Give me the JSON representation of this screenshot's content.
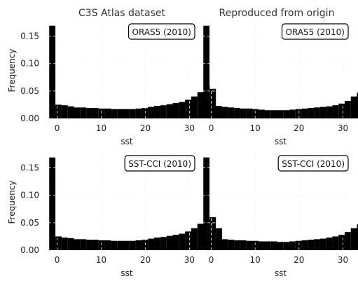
{
  "figure": {
    "column_titles": [
      "C3S Atlas dataset",
      "Reproduced from origin"
    ]
  },
  "chart_data": [
    {
      "type": "bar",
      "title": "C3S Atlas dataset",
      "legend": "ORAS5 (2010)",
      "legend_position": "top-right",
      "xlabel": "sst",
      "ylabel": "Frequency",
      "xlim": [
        -2,
        32
      ],
      "ylim": [
        0,
        0.175
      ],
      "xticks": [
        "0",
        "10",
        "20",
        "30"
      ],
      "yticks": [
        "0.00",
        "0.05",
        "0.10",
        "0.15"
      ],
      "grid": true,
      "bin_start": -1.8,
      "bin_width": 1.4,
      "values": [
        0.169,
        0.025,
        0.024,
        0.022,
        0.02,
        0.02,
        0.019,
        0.019,
        0.018,
        0.018,
        0.017,
        0.017,
        0.017,
        0.017,
        0.018,
        0.019,
        0.021,
        0.023,
        0.024,
        0.026,
        0.028,
        0.03,
        0.034,
        0.04,
        0.048,
        0.06,
        0.054,
        0.015
      ]
    },
    {
      "type": "bar",
      "title": "Reproduced from origin",
      "legend": "ORAS5 (2010)",
      "legend_position": "top-right",
      "xlabel": "sst",
      "ylabel": "",
      "xlim": [
        -2,
        32
      ],
      "ylim": [
        0,
        0.175
      ],
      "xticks": [
        "0",
        "10",
        "20",
        "30"
      ],
      "yticks": [],
      "grid": true,
      "bin_start": -1.8,
      "bin_width": 1.4,
      "values": [
        0.169,
        0.024,
        0.023,
        0.021,
        0.02,
        0.019,
        0.018,
        0.018,
        0.017,
        0.016,
        0.015,
        0.015,
        0.015,
        0.015,
        0.016,
        0.017,
        0.018,
        0.019,
        0.02,
        0.021,
        0.022,
        0.024,
        0.027,
        0.032,
        0.04,
        0.047,
        0.043,
        0.01
      ]
    },
    {
      "type": "bar",
      "title": "",
      "legend": "SST-CCI (2010)",
      "legend_position": "top-right",
      "xlabel": "sst",
      "ylabel": "Frequency",
      "xlim": [
        -2,
        32
      ],
      "ylim": [
        0,
        0.175
      ],
      "xticks": [
        "0",
        "10",
        "20",
        "30"
      ],
      "yticks": [
        "0.00",
        "0.05",
        "0.10",
        "0.15"
      ],
      "grid": true,
      "bin_start": -1.8,
      "bin_width": 1.4,
      "values": [
        0.169,
        0.025,
        0.023,
        0.022,
        0.02,
        0.02,
        0.019,
        0.019,
        0.018,
        0.018,
        0.017,
        0.017,
        0.017,
        0.017,
        0.018,
        0.019,
        0.021,
        0.023,
        0.024,
        0.026,
        0.028,
        0.03,
        0.034,
        0.04,
        0.048,
        0.055,
        0.06,
        0.04,
        0.005
      ]
    },
    {
      "type": "bar",
      "title": "",
      "legend": "SST-CCI (2010)",
      "legend_position": "top-right",
      "xlabel": "sst",
      "ylabel": "",
      "xlim": [
        -2,
        32
      ],
      "ylim": [
        0,
        0.175
      ],
      "xticks": [
        "0",
        "10",
        "20",
        "30"
      ],
      "yticks": [],
      "grid": true,
      "bin_start": -1.8,
      "bin_width": 1.4,
      "values": [
        0.169,
        0.023,
        0.022,
        0.02,
        0.019,
        0.018,
        0.018,
        0.017,
        0.017,
        0.016,
        0.016,
        0.016,
        0.015,
        0.015,
        0.016,
        0.017,
        0.018,
        0.019,
        0.02,
        0.021,
        0.023,
        0.025,
        0.028,
        0.033,
        0.04,
        0.047,
        0.052,
        0.04,
        0.006
      ]
    }
  ]
}
